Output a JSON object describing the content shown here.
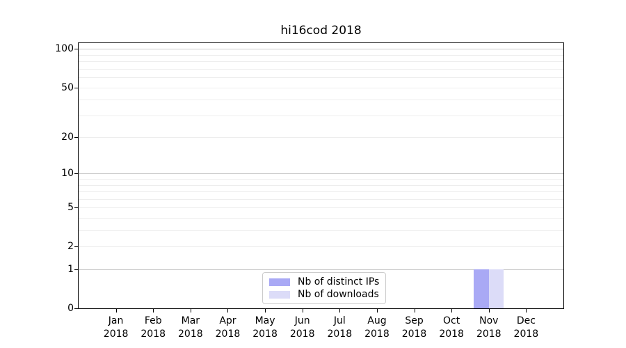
{
  "chart_data": {
    "type": "bar",
    "title": "hi16cod 2018",
    "categories": [
      "Jan 2018",
      "Feb 2018",
      "Mar 2018",
      "Apr 2018",
      "May 2018",
      "Jun 2018",
      "Jul 2018",
      "Aug 2018",
      "Sep 2018",
      "Oct 2018",
      "Nov 2018",
      "Dec 2018"
    ],
    "series": [
      {
        "name": "Nb of distinct IPs",
        "color": "#a9a9f5",
        "values": [
          0,
          0,
          0,
          0,
          0,
          0,
          0,
          0,
          0,
          0,
          1,
          0
        ]
      },
      {
        "name": "Nb of downloads",
        "color": "#dcdcf8",
        "values": [
          0,
          0,
          0,
          0,
          0,
          0,
          0,
          0,
          0,
          0,
          1,
          0
        ]
      }
    ],
    "xlabel": "",
    "ylabel": "",
    "yscale": "log1p",
    "ylim": [
      0,
      111
    ],
    "yticks": [
      0,
      1,
      2,
      5,
      10,
      20,
      50,
      100
    ],
    "y_major_gridlines": [
      1,
      10,
      100
    ],
    "y_minor_gridlines": [
      2,
      3,
      4,
      5,
      6,
      7,
      8,
      9,
      20,
      30,
      40,
      50,
      60,
      70,
      80,
      90
    ],
    "grid_major_color": "#c9c9c9",
    "grid_minor_color": "#ededed",
    "legend_position": "lower center"
  }
}
